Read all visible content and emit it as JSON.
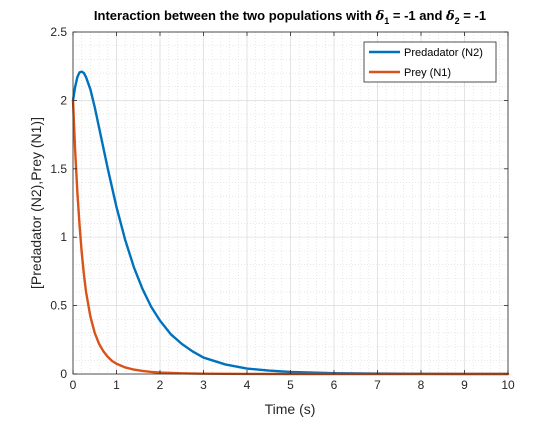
{
  "chart_data": {
    "type": "line",
    "title_parts": {
      "prefix": "Interaction between the two populations with ",
      "delta1_symbol": "δ",
      "delta1_sub": "1",
      "delta1_value": " = -1 and ",
      "delta2_symbol": "δ",
      "delta2_sub": "2",
      "delta2_value": " = -1"
    },
    "xlabel": "Time (s)",
    "ylabel": "[Predadator (N2),Prey (N1)]",
    "xlim": [
      0,
      10
    ],
    "ylim": [
      0,
      2.5
    ],
    "xticks": [
      0,
      1,
      2,
      3,
      4,
      5,
      6,
      7,
      8,
      9,
      10
    ],
    "xtick_labels": [
      "0",
      "1",
      "2",
      "3",
      "4",
      "5",
      "6",
      "7",
      "8",
      "9",
      "10"
    ],
    "yticks": [
      0,
      0.5,
      1,
      1.5,
      2,
      2.5
    ],
    "ytick_labels": [
      "0",
      "0.5",
      "1",
      "1.5",
      "2",
      "2.5"
    ],
    "grid": true,
    "minor_grid": true,
    "legend_position": "top-right",
    "series": [
      {
        "name": "Predadator (N2)",
        "color": "#0072BD",
        "x": [
          0,
          0.05,
          0.1,
          0.15,
          0.2,
          0.25,
          0.3,
          0.4,
          0.5,
          0.6,
          0.7,
          0.8,
          0.9,
          1.0,
          1.2,
          1.4,
          1.6,
          1.8,
          2.0,
          2.25,
          2.5,
          2.75,
          3.0,
          3.5,
          4.0,
          4.5,
          5.0,
          5.5,
          6.0,
          7.0,
          8.0,
          9.0,
          10.0
        ],
        "y": [
          2.0,
          2.1,
          2.17,
          2.205,
          2.21,
          2.2,
          2.17,
          2.08,
          1.95,
          1.8,
          1.65,
          1.5,
          1.36,
          1.22,
          0.98,
          0.78,
          0.62,
          0.49,
          0.39,
          0.29,
          0.22,
          0.165,
          0.12,
          0.07,
          0.04,
          0.025,
          0.015,
          0.01,
          0.006,
          0.003,
          0.001,
          0.0005,
          0.0002
        ]
      },
      {
        "name": "Prey (N1)",
        "color": "#D95319",
        "x": [
          0,
          0.05,
          0.1,
          0.15,
          0.2,
          0.25,
          0.3,
          0.4,
          0.5,
          0.6,
          0.7,
          0.8,
          0.9,
          1.0,
          1.2,
          1.4,
          1.6,
          1.8,
          2.0,
          2.5,
          3.0,
          4.0,
          5.0,
          6.0,
          8.0,
          10.0
        ],
        "y": [
          2.0,
          1.63,
          1.33,
          1.09,
          0.89,
          0.73,
          0.6,
          0.42,
          0.3,
          0.22,
          0.165,
          0.125,
          0.095,
          0.075,
          0.048,
          0.032,
          0.022,
          0.015,
          0.01,
          0.005,
          0.002,
          0.0005,
          0.0001,
          0,
          0,
          0
        ]
      }
    ]
  }
}
